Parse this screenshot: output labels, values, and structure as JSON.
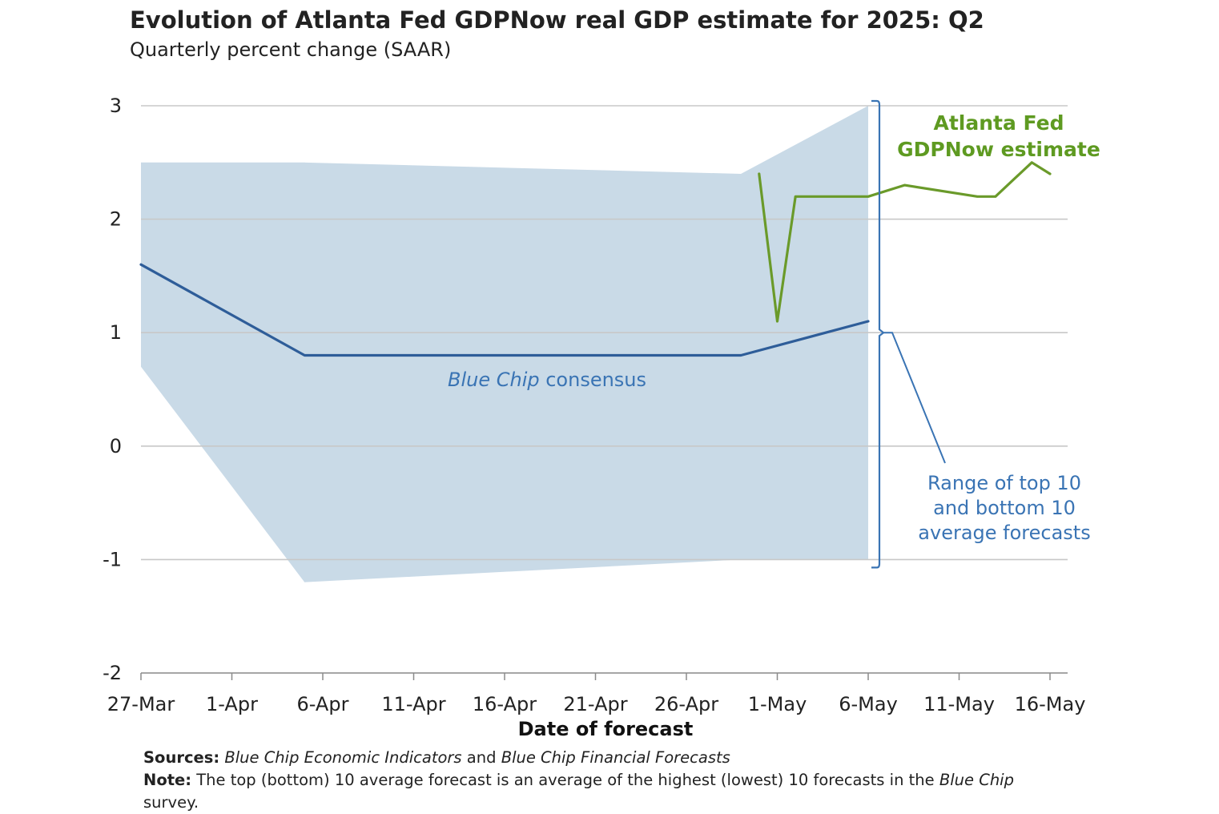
{
  "title": "Evolution of Atlanta Fed GDPNow real GDP estimate for 2025: Q2",
  "subtitle": "Quarterly percent change (SAAR)",
  "colors": {
    "band": "#c9dae7",
    "consensus": "#2e5d99",
    "gdpnow": "#6a9a2a",
    "gdpnow_label": "#5e9a21",
    "range_label": "#3a74b4",
    "grid": "#c8c8c8"
  },
  "chart_data": {
    "type": "line",
    "xlabel": "Date of forecast",
    "ylabel": "",
    "ylim": [
      -2,
      3
    ],
    "yticks": [
      3,
      2,
      1,
      0,
      -1,
      -2
    ],
    "xlim": [
      "2025-03-27",
      "2025-05-17"
    ],
    "xticks": [
      {
        "date": "2025-03-27",
        "label": "27-Mar"
      },
      {
        "date": "2025-04-01",
        "label": "1-Apr"
      },
      {
        "date": "2025-04-06",
        "label": "6-Apr"
      },
      {
        "date": "2025-04-11",
        "label": "11-Apr"
      },
      {
        "date": "2025-04-16",
        "label": "16-Apr"
      },
      {
        "date": "2025-04-21",
        "label": "21-Apr"
      },
      {
        "date": "2025-04-26",
        "label": "26-Apr"
      },
      {
        "date": "2025-05-01",
        "label": "1-May"
      },
      {
        "date": "2025-05-06",
        "label": "6-May"
      },
      {
        "date": "2025-05-11",
        "label": "11-May"
      },
      {
        "date": "2025-05-16",
        "label": "16-May"
      }
    ],
    "grid": true,
    "band": {
      "name": "Range of top 10 and bottom 10 average forecasts",
      "points": [
        {
          "date": "2025-03-27",
          "low": 0.7,
          "high": 2.5
        },
        {
          "date": "2025-04-05",
          "low": -1.2,
          "high": 2.5
        },
        {
          "date": "2025-04-29",
          "low": -1.0,
          "high": 2.4
        },
        {
          "date": "2025-05-06",
          "low": -1.0,
          "high": 3.0
        }
      ]
    },
    "series": [
      {
        "name": "Blue Chip consensus",
        "points": [
          {
            "date": "2025-03-27",
            "value": 1.6
          },
          {
            "date": "2025-04-05",
            "value": 0.8
          },
          {
            "date": "2025-04-29",
            "value": 0.8
          },
          {
            "date": "2025-05-06",
            "value": 1.1
          }
        ]
      },
      {
        "name": "Atlanta Fed GDPNow estimate",
        "points": [
          {
            "date": "2025-04-30",
            "value": 2.4
          },
          {
            "date": "2025-05-01",
            "value": 1.1
          },
          {
            "date": "2025-05-02",
            "value": 2.2
          },
          {
            "date": "2025-05-05",
            "value": 2.2
          },
          {
            "date": "2025-05-06",
            "value": 2.2
          },
          {
            "date": "2025-05-08",
            "value": 2.3
          },
          {
            "date": "2025-05-12",
            "value": 2.2
          },
          {
            "date": "2025-05-13",
            "value": 2.2
          },
          {
            "date": "2025-05-15",
            "value": 2.5
          },
          {
            "date": "2025-05-16",
            "value": 2.4
          }
        ]
      }
    ],
    "annotations": {
      "gdpnow_label": [
        "Atlanta Fed",
        "GDPNow estimate"
      ],
      "consensus_label_italic": "Blue Chip",
      "consensus_label_rest": " consensus",
      "range_label": [
        "Range of top 10",
        "and bottom 10",
        "average forecasts"
      ]
    }
  },
  "footer": {
    "sources_label": "Sources:",
    "sources_italic_1": "Blue Chip Economic Indicators",
    "sources_and": " and ",
    "sources_italic_2": "Blue Chip Financial Forecasts",
    "note_label": "Note:",
    "note_text": " The top (bottom) 10 average forecast is an average of the highest (lowest) 10 forecasts in the ",
    "note_italic": "Blue Chip",
    "note_end": " survey."
  }
}
